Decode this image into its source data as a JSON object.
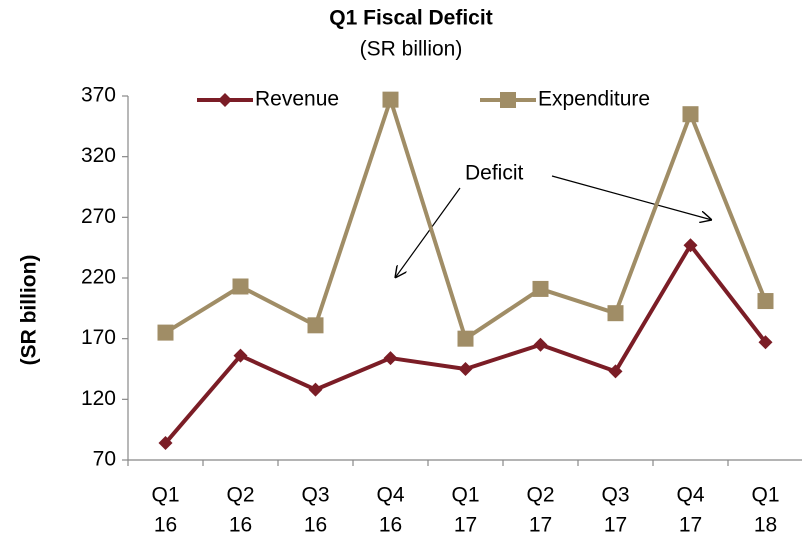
{
  "chart_data": {
    "type": "line",
    "title": "Q1 Fiscal Deficit",
    "subtitle": "(SR billion)",
    "y_label": "(SR billion)",
    "categories": [
      [
        "Q1",
        "16"
      ],
      [
        "Q2",
        "16"
      ],
      [
        "Q3",
        "16"
      ],
      [
        "Q4",
        "16"
      ],
      [
        "Q1",
        "17"
      ],
      [
        "Q2",
        "17"
      ],
      [
        "Q3",
        "17"
      ],
      [
        "Q4",
        "17"
      ],
      [
        "Q1",
        "18"
      ]
    ],
    "series": [
      {
        "name": "Revenue",
        "color": "#7b1d26",
        "marker": "diamond",
        "values": [
          84,
          156,
          128,
          154,
          145,
          165,
          143,
          247,
          167
        ]
      },
      {
        "name": "Expenditure",
        "color": "#a08d66",
        "marker": "square",
        "values": [
          175,
          213,
          181,
          367,
          170,
          211,
          191,
          355,
          201
        ]
      }
    ],
    "ylim": [
      70,
      370
    ],
    "yticks": [
      70,
      120,
      170,
      220,
      270,
      320,
      370
    ],
    "grid": false,
    "legend": "top",
    "annotation": "Deficit"
  }
}
